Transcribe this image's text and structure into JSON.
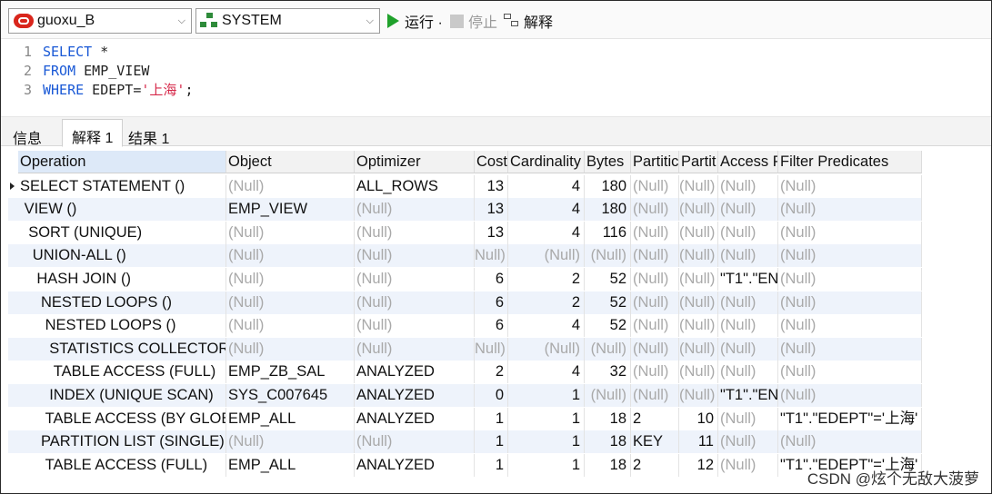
{
  "toolbar": {
    "connection": "guoxu_B",
    "schema": "SYSTEM",
    "run_label": "运行 ·",
    "stop_label": "停止",
    "explain_label": "解释"
  },
  "editor": {
    "lines": [
      {
        "num": "1",
        "parts": [
          {
            "t": "SELECT",
            "k": "kw"
          },
          {
            "t": " *",
            "k": "plain"
          }
        ]
      },
      {
        "num": "2",
        "parts": [
          {
            "t": "FROM",
            "k": "kw"
          },
          {
            "t": " EMP_VIEW",
            "k": "plain"
          }
        ]
      },
      {
        "num": "3",
        "parts": [
          {
            "t": "WHERE",
            "k": "kw"
          },
          {
            "t": " EDEPT=",
            "k": "plain"
          },
          {
            "t": "'上海'",
            "k": "str"
          },
          {
            "t": ";",
            "k": "plain"
          }
        ]
      }
    ]
  },
  "tabs": [
    {
      "label": "信息",
      "active": false
    },
    {
      "label": "解释 1",
      "active": true
    },
    {
      "label": "结果 1",
      "active": false
    }
  ],
  "grid": {
    "headers": [
      "Operation",
      "Object",
      "Optimizer",
      "Cost",
      "Cardinality",
      "Bytes",
      "Partitic",
      "Partit",
      "Access P",
      "Filter Predicates"
    ],
    "rows": [
      [
        "SELECT STATEMENT ()",
        "(Null)",
        "ALL_ROWS",
        "13",
        "4",
        "180",
        "(Null)",
        "(Null)",
        "(Null)",
        "(Null)"
      ],
      [
        "VIEW ()",
        "EMP_VIEW",
        "(Null)",
        "13",
        "4",
        "180",
        "(Null)",
        "(Null)",
        "(Null)",
        "(Null)"
      ],
      [
        "SORT (UNIQUE)",
        "(Null)",
        "(Null)",
        "13",
        "4",
        "116",
        "(Null)",
        "(Null)",
        "(Null)",
        "(Null)"
      ],
      [
        "UNION-ALL ()",
        "(Null)",
        "(Null)",
        "Null)",
        "(Null)",
        "(Null)",
        "(Null)",
        "(Null)",
        "(Null)",
        "(Null)"
      ],
      [
        "HASH JOIN ()",
        "(Null)",
        "(Null)",
        "6",
        "2",
        "52",
        "(Null)",
        "(Null)",
        "\"T1\".\"EN",
        "(Null)"
      ],
      [
        "NESTED LOOPS ()",
        "(Null)",
        "(Null)",
        "6",
        "2",
        "52",
        "(Null)",
        "(Null)",
        "(Null)",
        "(Null)"
      ],
      [
        "NESTED LOOPS ()",
        "(Null)",
        "(Null)",
        "6",
        "4",
        "52",
        "(Null)",
        "(Null)",
        "(Null)",
        "(Null)"
      ],
      [
        "STATISTICS COLLECTOR (",
        "(Null)",
        "(Null)",
        "Null)",
        "(Null)",
        "(Null)",
        "(Null)",
        "(Null)",
        "(Null)",
        "(Null)"
      ],
      [
        "TABLE ACCESS (FULL)",
        "EMP_ZB_SAL",
        "ANALYZED",
        "2",
        "4",
        "32",
        "(Null)",
        "(Null)",
        "(Null)",
        "(Null)"
      ],
      [
        "INDEX (UNIQUE SCAN)",
        "SYS_C007645",
        "ANALYZED",
        "0",
        "1",
        "(Null)",
        "(Null)",
        "(Null)",
        "\"T1\".\"EN",
        "(Null)"
      ],
      [
        "TABLE ACCESS (BY GLOBA",
        "EMP_ALL",
        "ANALYZED",
        "1",
        "1",
        "18",
        "2",
        "10",
        "(Null)",
        "\"T1\".\"EDEPT\"='上海'"
      ],
      [
        "PARTITION LIST (SINGLE)",
        "(Null)",
        "(Null)",
        "1",
        "1",
        "18",
        "KEY",
        "11",
        "(Null)",
        "(Null)"
      ],
      [
        "TABLE ACCESS (FULL)",
        "EMP_ALL",
        "ANALYZED",
        "1",
        "1",
        "18",
        "2",
        "12",
        "(Null)",
        "\"T1\".\"EDEPT\"='上海'"
      ]
    ],
    "indent": [
      0,
      1,
      2,
      3,
      4,
      5,
      6,
      7,
      8,
      7,
      6,
      5,
      6
    ]
  },
  "watermark": "CSDN @炫个无敌大菠萝"
}
